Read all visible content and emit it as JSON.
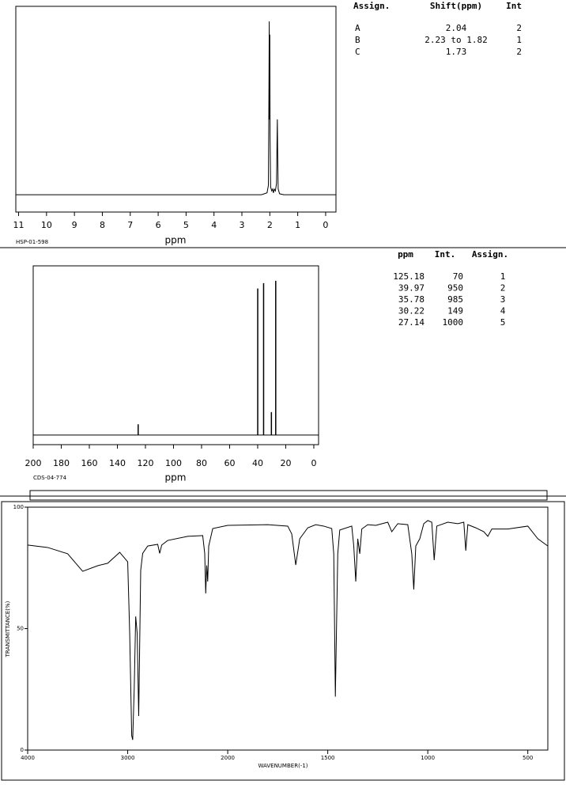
{
  "chart_data": [
    {
      "type": "line",
      "xlabel": "ppm",
      "code": "HSP-01-598",
      "x": [
        11.1,
        2.3,
        2.1,
        2.05,
        2.03,
        2.02,
        2.01,
        2.0,
        1.99,
        1.97,
        1.93,
        1.9,
        1.87,
        1.84,
        1.8,
        1.76,
        1.74,
        1.73,
        1.72,
        1.7,
        1.65,
        1.5,
        -0.37
      ],
      "values": [
        0,
        0,
        1,
        5,
        60,
        92,
        40,
        85,
        30,
        4,
        2,
        3,
        1,
        3,
        2,
        6,
        30,
        40,
        25,
        3,
        0.5,
        0,
        0
      ],
      "color": "#000000",
      "xlim": [
        11.1,
        -0.37
      ],
      "ylim": [
        -9.2,
        100
      ],
      "xticks": [
        11,
        10,
        9,
        8,
        7,
        6,
        5,
        4,
        3,
        2,
        1,
        0
      ]
    },
    {
      "type": "stick",
      "xlabel": "ppm",
      "code": "CDS-04-774",
      "x": [
        125.18,
        39.97,
        35.78,
        30.22,
        27.14
      ],
      "values": [
        70,
        950,
        985,
        149,
        1000
      ],
      "color": "#000000",
      "xlim": [
        200,
        -3.4
      ],
      "ylim": [
        -62,
        1097
      ],
      "xticks": [
        200,
        180,
        160,
        140,
        120,
        100,
        80,
        60,
        40,
        20,
        0
      ]
    },
    {
      "type": "line",
      "xlabel": "WAVENUMBER(-1)",
      "ylabel": "TRANSMITTANCE(%)",
      "x": [
        4000,
        3800,
        3600,
        3450,
        3300,
        3200,
        3080,
        3000,
        2980,
        2960,
        2950,
        2935,
        2920,
        2905,
        2890,
        2870,
        2850,
        2800,
        2700,
        2680,
        2660,
        2600,
        2400,
        2250,
        2230,
        2220,
        2210,
        2200,
        2190,
        2150,
        2000,
        1800,
        1700,
        1680,
        1660,
        1640,
        1600,
        1560,
        1520,
        1480,
        1470,
        1462,
        1450,
        1440,
        1380,
        1370,
        1360,
        1350,
        1340,
        1330,
        1300,
        1260,
        1200,
        1180,
        1150,
        1100,
        1080,
        1070,
        1060,
        1040,
        1020,
        1000,
        980,
        968,
        955,
        900,
        850,
        820,
        810,
        800,
        760,
        720,
        700,
        680,
        600,
        500,
        450,
        400
      ],
      "values": [
        84.4,
        83.4,
        80.8,
        73.6,
        75.9,
        76.9,
        81.4,
        77.5,
        48,
        6,
        4.2,
        25,
        55,
        48,
        14,
        74,
        81,
        84,
        84.7,
        81,
        84.4,
        86.3,
        88,
        88.3,
        81,
        64.5,
        76,
        69.4,
        84,
        91.2,
        92.5,
        92.8,
        92.2,
        89,
        76.2,
        87,
        91.5,
        92.8,
        92.2,
        91.2,
        80.8,
        22,
        80.8,
        90.6,
        92.2,
        84,
        69.4,
        87,
        80.8,
        91,
        92.8,
        92.5,
        93.8,
        89.9,
        93.2,
        92.8,
        80.8,
        66.1,
        84,
        87,
        93.2,
        94.5,
        93.8,
        78.2,
        92.2,
        93.8,
        93.2,
        93.8,
        82.1,
        92.8,
        91.5,
        89.9,
        88,
        91,
        91,
        92.2,
        87,
        84
      ],
      "color": "#000000",
      "xlim": [
        4000,
        400
      ],
      "x_scale_change": 2000,
      "ylim": [
        0,
        100
      ],
      "xticks": [
        4000,
        3000,
        2000,
        1500,
        1000,
        500
      ],
      "yticks": [
        0,
        50,
        100
      ]
    }
  ],
  "tables": [
    {
      "columns": [
        "Assign.",
        "Shift(ppm)",
        "Int"
      ],
      "rows": [
        [
          "A",
          "2.04",
          "2"
        ],
        [
          "B",
          "2.23 to 1.82",
          "1"
        ],
        [
          "C",
          "1.73",
          "2"
        ]
      ]
    },
    {
      "columns": [
        "ppm",
        "Int.",
        "Assign."
      ],
      "rows": [
        [
          "125.18",
          "70",
          "1"
        ],
        [
          "39.97",
          "950",
          "2"
        ],
        [
          "35.78",
          "985",
          "3"
        ],
        [
          "30.22",
          "149",
          "4"
        ],
        [
          "27.14",
          "1000",
          "5"
        ]
      ]
    }
  ]
}
